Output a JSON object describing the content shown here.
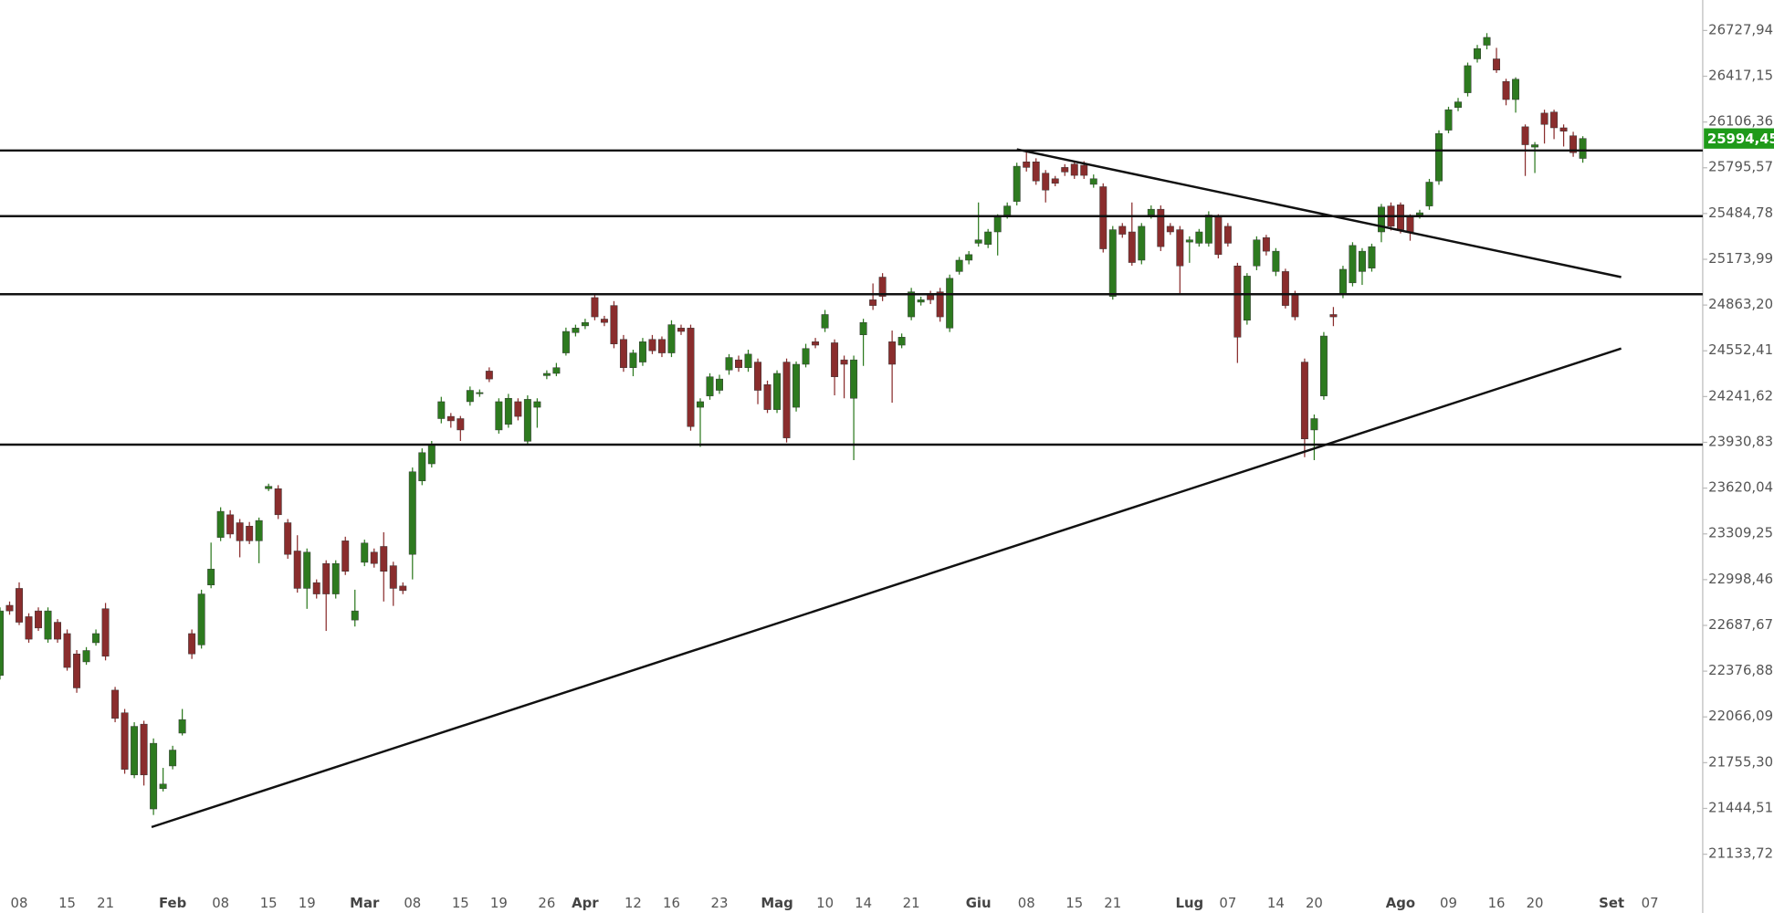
{
  "chart_data": {
    "type": "candlestick",
    "colors": {
      "up": "#2d7a1f",
      "down": "#8a2d2d",
      "lines": "#111111",
      "price_tag": "#1f9a1a"
    },
    "xlim": [
      0,
      177.5
    ],
    "ylim": [
      20865,
      26935
    ],
    "xticks": [
      {
        "value": 2,
        "label": "08"
      },
      {
        "value": 7,
        "label": "15"
      },
      {
        "value": 11,
        "label": "21"
      },
      {
        "value": 18,
        "label": "Feb"
      },
      {
        "value": 23,
        "label": "08"
      },
      {
        "value": 28,
        "label": "15"
      },
      {
        "value": 32,
        "label": "19"
      },
      {
        "value": 38,
        "label": "Mar"
      },
      {
        "value": 43,
        "label": "08"
      },
      {
        "value": 48,
        "label": "15"
      },
      {
        "value": 52,
        "label": "19"
      },
      {
        "value": 57,
        "label": "26"
      },
      {
        "value": 61,
        "label": "Apr"
      },
      {
        "value": 66,
        "label": "12"
      },
      {
        "value": 70,
        "label": "16"
      },
      {
        "value": 75,
        "label": "23"
      },
      {
        "value": 81,
        "label": "Mag"
      },
      {
        "value": 86,
        "label": "10"
      },
      {
        "value": 90,
        "label": "14"
      },
      {
        "value": 95,
        "label": "21"
      },
      {
        "value": 102,
        "label": "Giu"
      },
      {
        "value": 107,
        "label": "08"
      },
      {
        "value": 112,
        "label": "15"
      },
      {
        "value": 116,
        "label": "21"
      },
      {
        "value": 124,
        "label": "Lug"
      },
      {
        "value": 128,
        "label": "07"
      },
      {
        "value": 133,
        "label": "14"
      },
      {
        "value": 137,
        "label": "20"
      },
      {
        "value": 146,
        "label": "Ago"
      },
      {
        "value": 151,
        "label": "09"
      },
      {
        "value": 156,
        "label": "16"
      },
      {
        "value": 160,
        "label": "20"
      },
      {
        "value": 168,
        "label": "Set"
      },
      {
        "value": 172,
        "label": "07"
      }
    ],
    "yticks": [
      {
        "value": 21133.72,
        "label": "21133,72"
      },
      {
        "value": 21444.51,
        "label": "21444,51"
      },
      {
        "value": 21755.3,
        "label": "21755,30"
      },
      {
        "value": 22066.09,
        "label": "22066,09"
      },
      {
        "value": 22376.88,
        "label": "22376,88"
      },
      {
        "value": 22687.67,
        "label": "22687,67"
      },
      {
        "value": 22998.46,
        "label": "22998,46"
      },
      {
        "value": 23309.25,
        "label": "23309,25"
      },
      {
        "value": 23620.04,
        "label": "23620,04"
      },
      {
        "value": 23930.83,
        "label": "23930,83"
      },
      {
        "value": 24241.62,
        "label": "24241,62"
      },
      {
        "value": 24552.41,
        "label": "24552,41"
      },
      {
        "value": 24863.2,
        "label": "24863,20"
      },
      {
        "value": 25173.99,
        "label": "25173,99"
      },
      {
        "value": 25484.78,
        "label": "25484,78"
      },
      {
        "value": 25795.57,
        "label": "25795,57"
      },
      {
        "value": 26106.36,
        "label": "26106,36"
      },
      {
        "value": 26417.15,
        "label": "26417,15"
      },
      {
        "value": 26727.94,
        "label": "26727,94"
      }
    ],
    "last_price": {
      "value": 25994.45,
      "label": "25994,45"
    },
    "hlines": [
      25913,
      25467,
      24937,
      23915
    ],
    "trendlines": [
      {
        "x": [
          15.8,
          169
        ],
        "y": [
          21318,
          24568
        ]
      },
      {
        "x": [
          106,
          169
        ],
        "y": [
          25921,
          25053
        ]
      }
    ],
    "ohlc": [
      [
        22348,
        22810,
        22320,
        22786
      ],
      [
        22824,
        22850,
        22760,
        22786
      ],
      [
        22939,
        22980,
        22690,
        22709
      ],
      [
        22747,
        22770,
        22570,
        22594
      ],
      [
        22786,
        22810,
        22650,
        22670
      ],
      [
        22594,
        22810,
        22570,
        22786
      ],
      [
        22709,
        22730,
        22570,
        22594
      ],
      [
        22632,
        22660,
        22380,
        22402
      ],
      [
        22494,
        22520,
        22230,
        22263
      ],
      [
        22440,
        22540,
        22420,
        22517
      ],
      [
        22570,
        22660,
        22550,
        22632
      ],
      [
        22801,
        22840,
        22450,
        22478
      ],
      [
        22248,
        22270,
        22030,
        22056
      ],
      [
        22094,
        22120,
        21680,
        21710
      ],
      [
        21672,
        22030,
        21650,
        22002
      ],
      [
        22017,
        22040,
        21600,
        21672
      ],
      [
        21441,
        21920,
        21400,
        21887
      ],
      [
        21579,
        21720,
        21560,
        21610
      ],
      [
        21733,
        21870,
        21710,
        21841
      ],
      [
        21956,
        22120,
        21940,
        22048
      ],
      [
        22632,
        22660,
        22460,
        22494
      ],
      [
        22555,
        22930,
        22530,
        22901
      ],
      [
        22962,
        23250,
        22940,
        23070
      ],
      [
        23285,
        23490,
        23260,
        23462
      ],
      [
        23439,
        23470,
        23280,
        23308
      ],
      [
        23385,
        23410,
        23150,
        23262
      ],
      [
        23362,
        23390,
        23240,
        23262
      ],
      [
        23262,
        23420,
        23110,
        23400
      ],
      [
        23616,
        23650,
        23600,
        23632
      ],
      [
        23616,
        23640,
        23410,
        23439
      ],
      [
        23385,
        23410,
        23140,
        23170
      ],
      [
        23193,
        23300,
        22910,
        22939
      ],
      [
        22939,
        23210,
        22800,
        23185
      ],
      [
        22978,
        23000,
        22870,
        22901
      ],
      [
        23108,
        23130,
        22650,
        22901
      ],
      [
        22901,
        23130,
        22870,
        23108
      ],
      [
        23262,
        23290,
        23030,
        23055
      ],
      [
        22724,
        22930,
        22680,
        22786
      ],
      [
        23116,
        23270,
        23090,
        23247
      ],
      [
        23185,
        23210,
        23080,
        23108
      ],
      [
        23224,
        23320,
        22850,
        23055
      ],
      [
        23093,
        23120,
        22820,
        22939
      ],
      [
        22955,
        22980,
        22900,
        22924
      ],
      [
        23170,
        23760,
        23000,
        23731
      ],
      [
        23669,
        23890,
        23640,
        23861
      ],
      [
        23785,
        23940,
        23760,
        23915
      ],
      [
        24092,
        24240,
        24060,
        24207
      ],
      [
        24107,
        24130,
        24030,
        24077
      ],
      [
        24092,
        24110,
        23940,
        24015
      ],
      [
        24207,
        24310,
        24180,
        24284
      ],
      [
        24261,
        24290,
        24240,
        24269
      ],
      [
        24415,
        24440,
        24340,
        24361
      ],
      [
        24015,
        24230,
        23990,
        24207
      ],
      [
        24053,
        24260,
        24030,
        24230
      ],
      [
        24207,
        24230,
        24080,
        24107
      ],
      [
        23938,
        24250,
        23910,
        24223
      ],
      [
        24169,
        24230,
        24030,
        24207
      ],
      [
        24384,
        24420,
        24360,
        24399
      ],
      [
        24399,
        24470,
        24380,
        24438
      ],
      [
        24538,
        24710,
        24520,
        24684
      ],
      [
        24676,
        24730,
        24650,
        24707
      ],
      [
        24722,
        24770,
        24700,
        24745
      ],
      [
        24914,
        24940,
        24760,
        24783
      ],
      [
        24768,
        24790,
        24720,
        24745
      ],
      [
        24860,
        24890,
        24570,
        24599
      ],
      [
        24630,
        24660,
        24410,
        24438
      ],
      [
        24438,
        24560,
        24380,
        24538
      ],
      [
        24476,
        24640,
        24450,
        24614
      ],
      [
        24630,
        24660,
        24530,
        24553
      ],
      [
        24630,
        24650,
        24510,
        24538
      ],
      [
        24538,
        24760,
        24510,
        24730
      ],
      [
        24707,
        24730,
        24660,
        24684
      ],
      [
        24707,
        24730,
        24010,
        24038
      ],
      [
        24169,
        24230,
        23900,
        24207
      ],
      [
        24246,
        24400,
        24220,
        24376
      ],
      [
        24284,
        24390,
        24260,
        24361
      ],
      [
        24422,
        24530,
        24390,
        24507
      ],
      [
        24491,
        24520,
        24410,
        24438
      ],
      [
        24438,
        24560,
        24410,
        24530
      ],
      [
        24476,
        24500,
        24190,
        24284
      ],
      [
        24323,
        24350,
        24130,
        24153
      ],
      [
        24153,
        24420,
        24130,
        24399
      ],
      [
        24476,
        24500,
        23930,
        23961
      ],
      [
        24169,
        24480,
        24140,
        24461
      ],
      [
        24461,
        24600,
        24440,
        24568
      ],
      [
        24614,
        24640,
        24570,
        24591
      ],
      [
        24707,
        24830,
        24680,
        24799
      ],
      [
        24607,
        24630,
        24250,
        24376
      ],
      [
        24491,
        24520,
        24230,
        24461
      ],
      [
        24230,
        24520,
        23810,
        24491
      ],
      [
        24661,
        24770,
        24450,
        24745
      ],
      [
        24899,
        25010,
        24830,
        24860
      ],
      [
        25053,
        25080,
        24890,
        24922
      ],
      [
        24614,
        24690,
        24200,
        24461
      ],
      [
        24591,
        24670,
        24570,
        24645
      ],
      [
        24783,
        24980,
        24760,
        24953
      ],
      [
        24883,
        24920,
        24860,
        24899
      ],
      [
        24937,
        24960,
        24870,
        24899
      ],
      [
        24953,
        24980,
        24750,
        24783
      ],
      [
        24707,
        25070,
        24680,
        25045
      ],
      [
        25091,
        25190,
        25070,
        25168
      ],
      [
        25168,
        25230,
        25140,
        25206
      ],
      [
        25283,
        25560,
        25260,
        25306
      ],
      [
        25275,
        25380,
        25250,
        25360
      ],
      [
        25360,
        25480,
        25200,
        25460
      ],
      [
        25475,
        25560,
        25450,
        25536
      ],
      [
        25567,
        25830,
        25540,
        25806
      ],
      [
        25836,
        25900,
        25770,
        25798
      ],
      [
        25836,
        25860,
        25680,
        25706
      ],
      [
        25759,
        25780,
        25560,
        25644
      ],
      [
        25721,
        25740,
        25670,
        25690
      ],
      [
        25798,
        25820,
        25740,
        25767
      ],
      [
        25821,
        25840,
        25720,
        25744
      ],
      [
        25813,
        25840,
        25720,
        25744
      ],
      [
        25683,
        25750,
        25660,
        25721
      ],
      [
        25667,
        25690,
        25220,
        25245
      ],
      [
        24922,
        25400,
        24900,
        25375
      ],
      [
        25398,
        25420,
        25320,
        25344
      ],
      [
        25360,
        25560,
        25130,
        25152
      ],
      [
        25168,
        25420,
        25140,
        25398
      ],
      [
        25475,
        25540,
        25450,
        25514
      ],
      [
        25514,
        25540,
        25230,
        25260
      ],
      [
        25398,
        25420,
        25340,
        25360
      ],
      [
        25375,
        25400,
        24940,
        25129
      ],
      [
        25291,
        25330,
        25150,
        25306
      ],
      [
        25283,
        25380,
        25260,
        25360
      ],
      [
        25283,
        25500,
        25260,
        25475
      ],
      [
        25460,
        25480,
        25180,
        25206
      ],
      [
        25398,
        25420,
        25260,
        25283
      ],
      [
        25129,
        25150,
        24470,
        24645
      ],
      [
        24760,
        25080,
        24730,
        25060
      ],
      [
        25129,
        25330,
        25100,
        25306
      ],
      [
        25321,
        25340,
        25200,
        25229
      ],
      [
        25091,
        25250,
        25060,
        25229
      ],
      [
        25091,
        25110,
        24840,
        24860
      ],
      [
        24937,
        24960,
        24760,
        24783
      ],
      [
        24476,
        24500,
        23830,
        23954
      ],
      [
        24015,
        24120,
        23810,
        24092
      ],
      [
        24246,
        24680,
        24220,
        24653
      ],
      [
        24799,
        24850,
        24720,
        24783
      ],
      [
        24937,
        25130,
        24910,
        25106
      ],
      [
        25014,
        25290,
        24990,
        25268
      ],
      [
        25091,
        25250,
        25000,
        25229
      ],
      [
        25114,
        25280,
        25090,
        25260
      ],
      [
        25360,
        25550,
        25290,
        25529
      ],
      [
        25536,
        25560,
        25370,
        25398
      ],
      [
        25544,
        25560,
        25350,
        25375
      ],
      [
        25460,
        25480,
        25300,
        25360
      ],
      [
        25475,
        25510,
        25450,
        25490
      ],
      [
        25536,
        25720,
        25510,
        25698
      ],
      [
        25706,
        26050,
        25680,
        26028
      ],
      [
        26051,
        26210,
        26030,
        26190
      ],
      [
        26205,
        26270,
        26180,
        26243
      ],
      [
        26305,
        26510,
        26280,
        26489
      ],
      [
        26535,
        26630,
        26510,
        26605
      ],
      [
        26628,
        26710,
        26600,
        26681
      ],
      [
        26535,
        26610,
        26440,
        26459
      ],
      [
        26382,
        26400,
        26220,
        26259
      ],
      [
        26259,
        26410,
        26170,
        26397
      ],
      [
        26074,
        26090,
        25740,
        25952
      ],
      [
        25936,
        25970,
        25760,
        25952
      ],
      [
        26167,
        26190,
        25960,
        26090
      ],
      [
        26174,
        26190,
        25990,
        26067
      ],
      [
        26067,
        26090,
        25940,
        26044
      ],
      [
        26013,
        26040,
        25870,
        25898
      ],
      [
        25859,
        26010,
        25830,
        25994.45
      ]
    ]
  }
}
